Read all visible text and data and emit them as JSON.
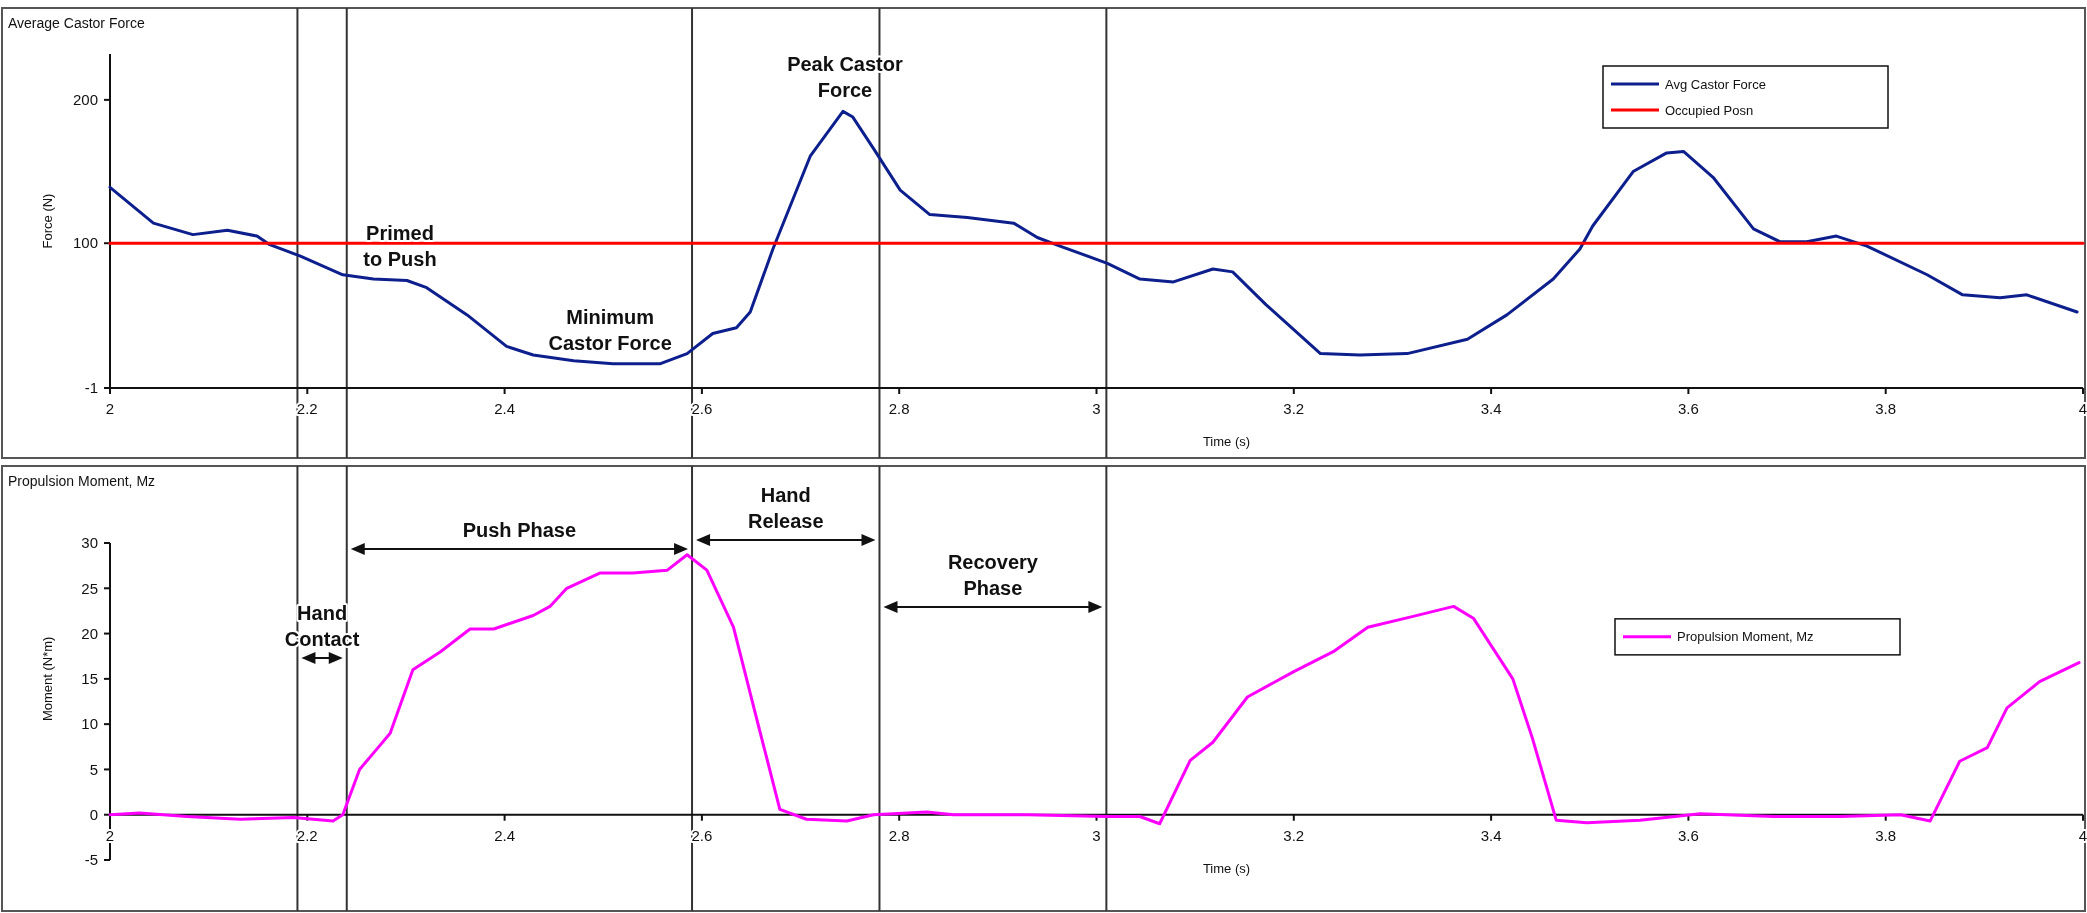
{
  "chart_data": [
    {
      "type": "line",
      "title": "Average Castor Force",
      "xlabel": "Time (s)",
      "ylabel": "Force (N)",
      "xlim": [
        2,
        4
      ],
      "xticks": [
        2,
        2.2,
        2.4,
        2.6,
        2.8,
        3,
        3.2,
        3.4,
        3.6,
        3.8,
        4
      ],
      "ylim": [
        -1,
        232
      ],
      "yticks": [
        -1,
        100,
        200
      ],
      "legend": "top right",
      "series": [
        {
          "name": "Avg Castor Force",
          "color": "#0d1f8c",
          "x": [
            2.0,
            2.044,
            2.084,
            2.119,
            2.149,
            2.162,
            2.193,
            2.236,
            2.267,
            2.301,
            2.321,
            2.362,
            2.402,
            2.429,
            2.47,
            2.51,
            2.558,
            2.585,
            2.611,
            2.635,
            2.649,
            2.672,
            2.71,
            2.743,
            2.753,
            2.774,
            2.801,
            2.831,
            2.869,
            2.916,
            2.94,
            2.963,
            3.011,
            3.044,
            3.078,
            3.118,
            3.138,
            3.172,
            3.227,
            3.267,
            3.315,
            3.376,
            3.416,
            3.463,
            3.49,
            3.503,
            3.544,
            3.578,
            3.595,
            3.625,
            3.666,
            3.693,
            3.72,
            3.75,
            3.781,
            3.842,
            3.878,
            3.916,
            3.943,
            3.994
          ],
          "values": [
            139,
            114,
            106,
            109,
            105,
            99,
            91,
            78,
            75,
            74,
            69,
            50,
            28,
            22,
            18,
            16,
            16,
            23,
            37,
            41,
            52,
            96,
            161,
            192,
            188,
            166,
            137,
            120,
            118,
            114,
            104,
            98,
            86,
            75,
            73,
            82,
            80,
            57,
            23,
            22,
            23,
            33,
            50,
            75,
            96,
            112,
            150,
            163,
            164,
            146,
            110,
            101,
            101,
            105,
            98,
            78,
            64,
            62,
            64,
            52
          ]
        },
        {
          "name": "Occupied Posn",
          "color": "#ff0000",
          "x": [
            2,
            4
          ],
          "values": [
            100,
            100
          ]
        }
      ],
      "ref_lines": [
        {
          "axis": "x",
          "value": 2.19,
          "color": "#333333"
        },
        {
          "axis": "x",
          "value": 2.24,
          "color": "#333333"
        },
        {
          "axis": "x",
          "value": 2.59,
          "color": "#333333"
        },
        {
          "axis": "x",
          "value": 2.78,
          "color": "#333333"
        },
        {
          "axis": "x",
          "value": 3.01,
          "color": "#333333"
        }
      ],
      "annotations": [
        {
          "text": "Primed\nto Push",
          "x": 2.294,
          "y": 74
        },
        {
          "text": "Minimum\nCastor Force",
          "x": 2.507,
          "y": 16
        },
        {
          "text": "Peak Castor\nForce",
          "x": 2.745,
          "y": 192
        }
      ]
    },
    {
      "type": "line",
      "title": "Propulsion Moment, Mz",
      "xlabel": "Time (s)",
      "ylabel": "Moment (N*m)",
      "xlim": [
        2,
        4
      ],
      "xticks": [
        2,
        2.2,
        2.4,
        2.6,
        2.8,
        3,
        3.2,
        3.4,
        3.6,
        3.8,
        4
      ],
      "ylim": [
        -5,
        30
      ],
      "yticks": [
        -5,
        0,
        5,
        10,
        15,
        20,
        25,
        30
      ],
      "legend": "right",
      "series": [
        {
          "name": "Propulsion Moment, Mz",
          "color": "#ff00ff",
          "x": [
            2.0,
            2.03,
            2.078,
            2.132,
            2.186,
            2.226,
            2.236,
            2.253,
            2.267,
            2.284,
            2.307,
            2.335,
            2.365,
            2.389,
            2.429,
            2.446,
            2.463,
            2.497,
            2.53,
            2.565,
            2.585,
            2.605,
            2.632,
            2.656,
            2.679,
            2.706,
            2.747,
            2.774,
            2.828,
            2.855,
            2.93,
            3.01,
            3.044,
            3.064,
            3.095,
            3.118,
            3.153,
            3.2,
            3.24,
            3.275,
            3.321,
            3.362,
            3.382,
            3.422,
            3.442,
            3.466,
            3.497,
            3.551,
            3.612,
            3.686,
            3.754,
            3.815,
            3.845,
            3.875,
            3.903,
            3.923,
            3.956,
            3.996
          ],
          "values": [
            0,
            0.2,
            -0.2,
            -0.5,
            -0.3,
            -0.7,
            0,
            5,
            6.8,
            9,
            16,
            18,
            20.5,
            20.5,
            22,
            23,
            25,
            26.7,
            26.7,
            27,
            28.7,
            27,
            20.7,
            10.4,
            0.6,
            -0.5,
            -0.7,
            0,
            0.3,
            0,
            0,
            -0.2,
            -0.2,
            -1,
            6,
            8,
            13,
            15.8,
            18,
            20.7,
            21.9,
            23,
            21.7,
            15,
            8.4,
            -0.6,
            -0.9,
            -0.6,
            0.1,
            -0.2,
            -0.2,
            0,
            -0.7,
            5.9,
            7.4,
            11.8,
            14.7,
            16.8
          ]
        }
      ],
      "ref_lines": [
        {
          "axis": "x",
          "value": 2.19,
          "color": "#333333"
        },
        {
          "axis": "x",
          "value": 2.24,
          "color": "#333333"
        },
        {
          "axis": "x",
          "value": 2.59,
          "color": "#333333"
        },
        {
          "axis": "x",
          "value": 2.78,
          "color": "#333333"
        },
        {
          "axis": "x",
          "value": 3.01,
          "color": "#333333"
        }
      ],
      "annotations": [
        "Hand\nContact",
        "Push Phase",
        "Hand\nRelease",
        "Recovery\nPhase"
      ]
    }
  ]
}
